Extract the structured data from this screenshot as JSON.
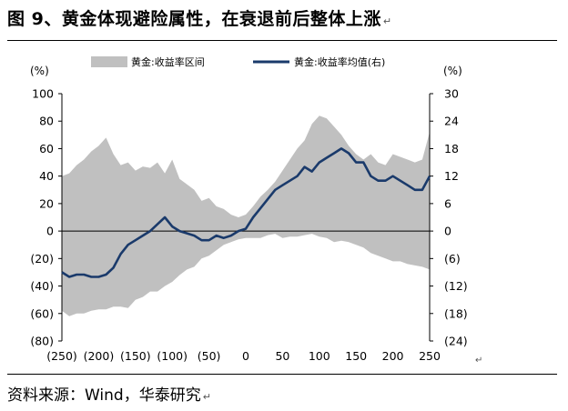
{
  "figure": {
    "title": "图 9、黄金体现避险属性，在衰退前后整体上涨",
    "mark": "↵",
    "source": "资料来源：Wind，华泰研究",
    "end_mark": "↵"
  },
  "chart_data": {
    "type": "area",
    "title": "",
    "xlabel": "",
    "left_axis_unit": "(%)",
    "right_axis_unit": "(%)",
    "x_ticks": [
      -250,
      -200,
      -150,
      -100,
      -50,
      0,
      50,
      100,
      150,
      200,
      250
    ],
    "x_tick_labels": [
      "(250)",
      "(200)",
      "(150)",
      "(100)",
      "(50)",
      "0",
      "50",
      "100",
      "150",
      "200",
      "250"
    ],
    "xlim": [
      -250,
      250
    ],
    "ylim_left": [
      -80,
      100
    ],
    "ylim_right": [
      -24,
      30
    ],
    "y_ticks_left": [
      100,
      80,
      60,
      40,
      20,
      0,
      -20,
      -40,
      -60,
      -80
    ],
    "y_tick_labels_left": [
      "100",
      "80",
      "60",
      "40",
      "20",
      "0",
      "(20)",
      "(40)",
      "(60)",
      "(80)"
    ],
    "y_ticks_right": [
      30,
      24,
      18,
      12,
      6,
      0,
      -6,
      -12,
      -18,
      -24
    ],
    "y_tick_labels_right": [
      "30",
      "24",
      "18",
      "12",
      "6",
      "0",
      "(6)",
      "(12)",
      "(18)",
      "(24)"
    ],
    "legend_position": "top",
    "series": [
      {
        "name": "黄金:收益率区间",
        "axis": "left",
        "kind": "band",
        "color": "#c0c0c0",
        "x": [
          -250,
          -240,
          -230,
          -220,
          -210,
          -200,
          -190,
          -180,
          -170,
          -160,
          -150,
          -140,
          -130,
          -120,
          -110,
          -100,
          -90,
          -80,
          -70,
          -60,
          -50,
          -40,
          -30,
          -20,
          -10,
          0,
          10,
          20,
          30,
          40,
          50,
          60,
          70,
          80,
          90,
          100,
          110,
          120,
          130,
          140,
          150,
          160,
          170,
          180,
          190,
          200,
          210,
          220,
          230,
          240,
          250
        ],
        "upper": [
          40,
          42,
          48,
          52,
          58,
          62,
          68,
          56,
          48,
          50,
          44,
          47,
          46,
          50,
          42,
          52,
          38,
          34,
          30,
          22,
          24,
          18,
          16,
          12,
          10,
          12,
          18,
          25,
          30,
          36,
          44,
          52,
          60,
          66,
          78,
          84,
          82,
          76,
          70,
          62,
          56,
          52,
          56,
          50,
          48,
          56,
          54,
          52,
          50,
          52,
          72
        ],
        "lower": [
          -58,
          -62,
          -60,
          -60,
          -58,
          -57,
          -57,
          -55,
          -55,
          -56,
          -50,
          -48,
          -44,
          -44,
          -40,
          -37,
          -32,
          -28,
          -26,
          -20,
          -18,
          -14,
          -10,
          -8,
          -6,
          -5,
          -5,
          -5,
          -3,
          -2,
          -5,
          -4,
          -4,
          -3,
          -2,
          -4,
          -5,
          -8,
          -7,
          -8,
          -10,
          -12,
          -16,
          -18,
          -20,
          -22,
          -22,
          -24,
          -25,
          -26,
          -28
        ]
      },
      {
        "name": "黄金:收益率均值(右)",
        "axis": "right",
        "kind": "line",
        "color": "#1a3a6b",
        "x": [
          -250,
          -240,
          -230,
          -220,
          -210,
          -200,
          -190,
          -180,
          -170,
          -160,
          -150,
          -140,
          -130,
          -120,
          -110,
          -100,
          -90,
          -80,
          -70,
          -60,
          -50,
          -40,
          -30,
          -20,
          -10,
          0,
          10,
          20,
          30,
          40,
          50,
          60,
          70,
          80,
          90,
          100,
          110,
          120,
          130,
          140,
          150,
          160,
          170,
          180,
          190,
          200,
          210,
          220,
          230,
          240,
          250
        ],
        "y": [
          -9,
          -10,
          -9.5,
          -9.5,
          -10,
          -10,
          -9.5,
          -8,
          -5,
          -3,
          -2,
          -1,
          0,
          1.5,
          3,
          1,
          0,
          -0.5,
          -1,
          -2,
          -2,
          -1,
          -1.5,
          -1,
          0,
          0.5,
          3,
          5,
          7,
          9,
          10,
          11,
          12,
          14,
          13,
          15,
          16,
          17,
          18,
          17,
          15,
          15,
          12,
          11,
          11,
          12,
          11,
          10,
          9,
          9,
          12
        ]
      }
    ]
  }
}
